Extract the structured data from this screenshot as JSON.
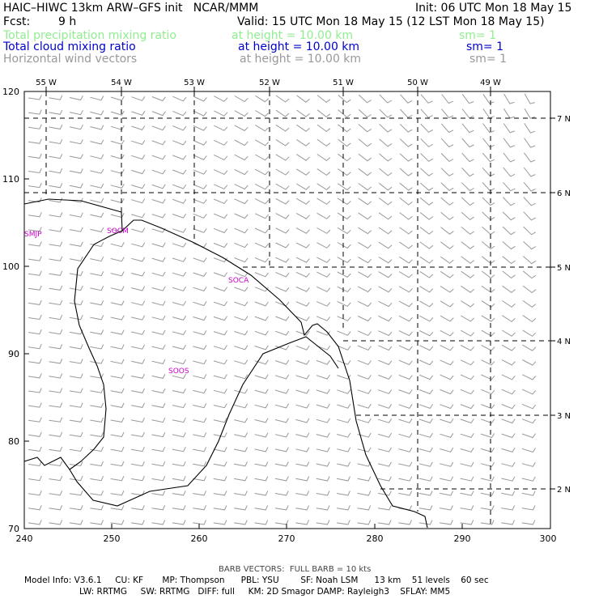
{
  "header": {
    "title": "HAIC–HIWC 13km ARW–GFS init   NCAR/MMM",
    "init": "Init: 06 UTC Mon 18 May 15",
    "fcst_label": "Fcst:",
    "fcst_value": "9 h",
    "valid": "Valid: 15 UTC Mon 18 May 15 (12 LST Mon 18 May 15)"
  },
  "fields": [
    {
      "name": "Total precipitation mixing ratio",
      "level": "at height = 10.00 km",
      "sm": "sm= 1",
      "color": "#90ee90"
    },
    {
      "name": "Total cloud mixing ratio",
      "level": "at height = 10.00 km",
      "sm": "sm= 1",
      "color": "#0000cc"
    },
    {
      "name": "Horizontal wind vectors",
      "level": "at height = 10.00 km",
      "sm": "sm= 1",
      "color": "#999999"
    }
  ],
  "map": {
    "left_axis": {
      "min": 70,
      "max": 120,
      "ticks": [
        70,
        80,
        90,
        100,
        110,
        120
      ]
    },
    "bottom_axis": {
      "min": 240,
      "max": 300,
      "ticks": [
        240,
        250,
        260,
        270,
        280,
        290,
        300
      ]
    },
    "top_labels": [
      "55 W",
      "54 W",
      "53 W",
      "52 W",
      "51 W",
      "50 W",
      "49 W"
    ],
    "right_labels": [
      "7 N",
      "6 N",
      "5 N",
      "4 N",
      "3 N",
      "2 N"
    ],
    "stations": [
      "SMJP",
      "SOCM",
      "SOCA",
      "SOOS"
    ],
    "coast_color": "#000000",
    "station_color": "#cc00cc",
    "barb_color": "#999999"
  },
  "footer": {
    "barb_note": "BARB VECTORS:  FULL BARB = 10 kts",
    "model_line1": "Model Info: V3.6.1     CU: KF       MP: Thompson      PBL: YSU        SF: Noah LSM      13 km    51 levels    60 sec",
    "model_line2": "LW: RRTMG     SW: RRTMG   DIFF: full     KM: 2D Smagor DAMP: Rayleigh3    SFLAY: MM5"
  }
}
